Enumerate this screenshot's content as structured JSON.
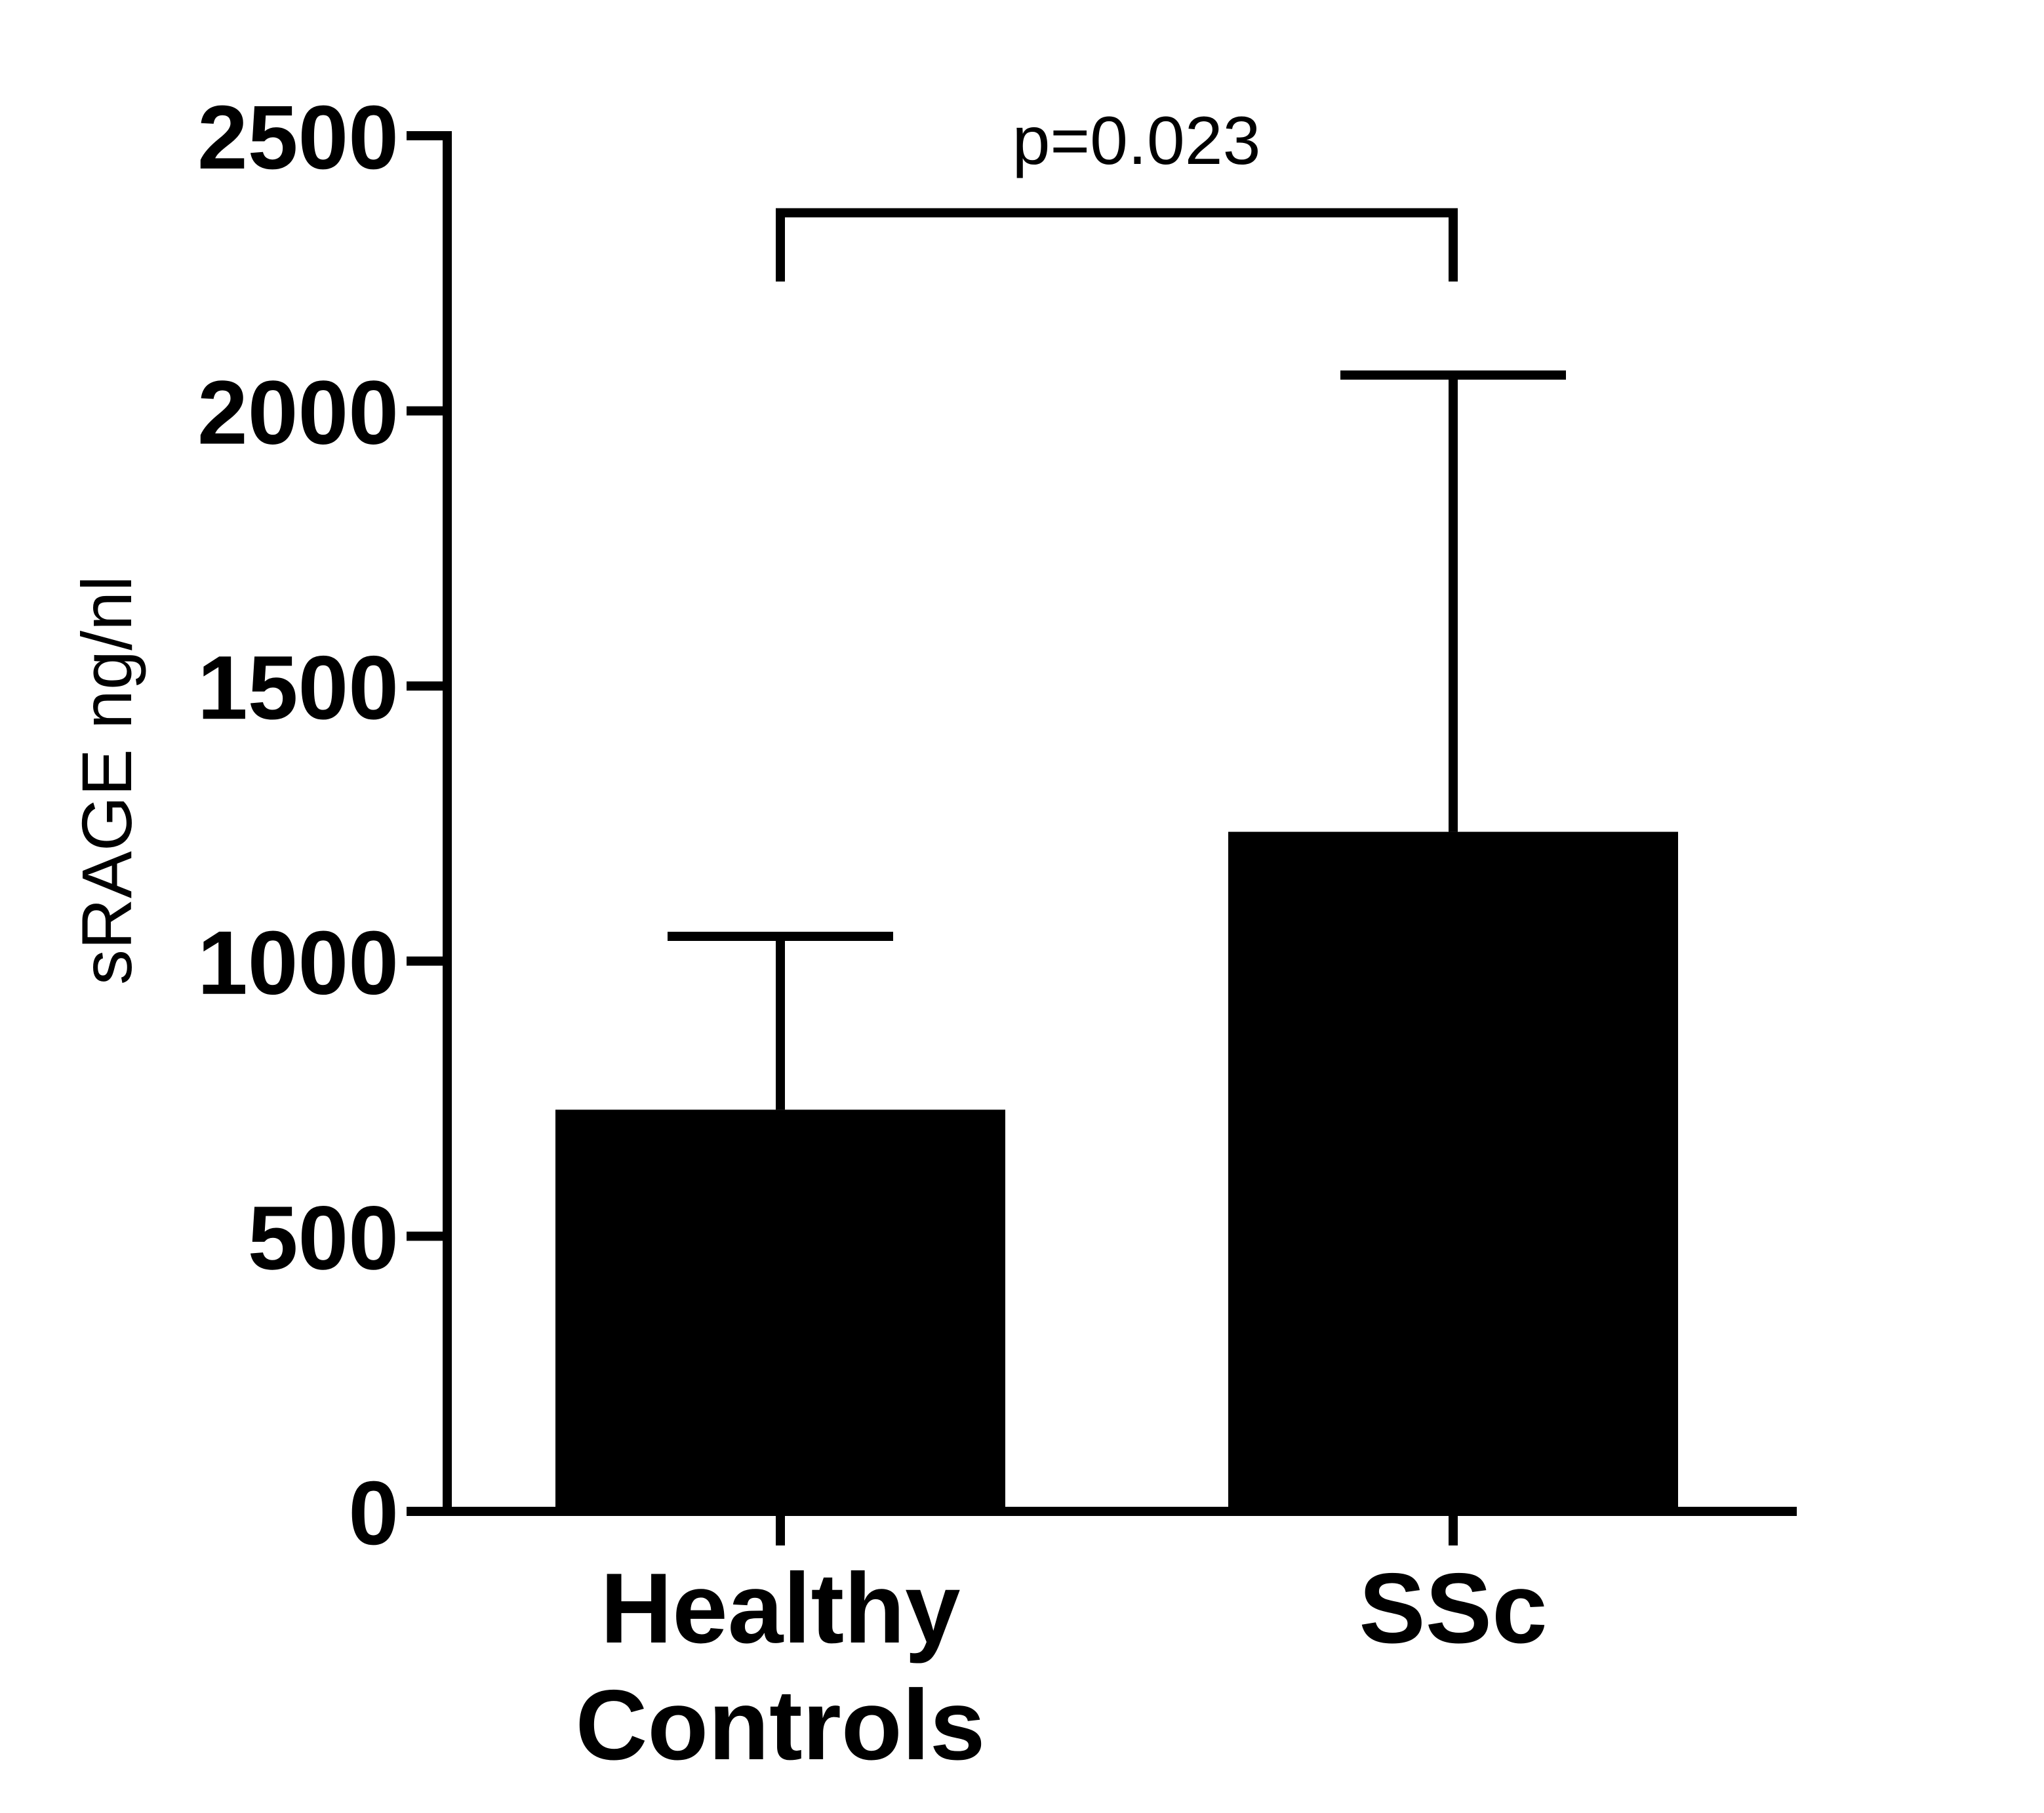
{
  "chart_data": {
    "type": "bar",
    "title": "",
    "xlabel": "",
    "ylabel": "sRAGE ng/nl",
    "categories": [
      {
        "lines": [
          "Healthy",
          "Controls"
        ]
      },
      {
        "lines": [
          "SSc"
        ]
      }
    ],
    "values": [
      730,
      1235
    ],
    "error_upper": [
      1045,
      2065
    ],
    "ylim": [
      0,
      2500
    ],
    "yticks": [
      0,
      500,
      1000,
      1500,
      2000,
      2500
    ],
    "ytick_labels": [
      "0",
      "500",
      "1000",
      "1500",
      "2000",
      "2500"
    ],
    "grid": false,
    "legend": "none",
    "significance": {
      "label": "p=0.023",
      "between": [
        0,
        1
      ],
      "level": 2360,
      "leg_bottom": 2235
    },
    "colors": {
      "bar": "#000000",
      "axis": "#000000",
      "text": "#000000",
      "background": "#ffffff"
    }
  }
}
